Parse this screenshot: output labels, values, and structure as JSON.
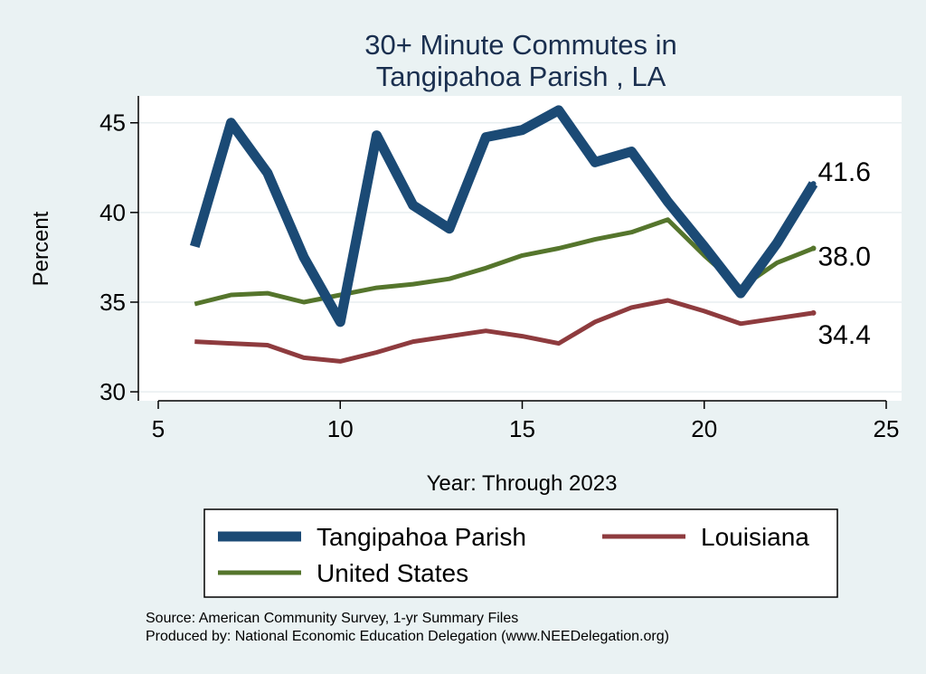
{
  "chart_data": {
    "type": "line",
    "title": [
      "30+ Minute Commutes in",
      "Tangipahoa Parish , LA"
    ],
    "xlabel": "Year: Through 2023",
    "ylabel": "Percent",
    "xlim": [
      5,
      25
    ],
    "ylim": [
      29.5,
      46.5
    ],
    "xticks": [
      5,
      10,
      15,
      20,
      25
    ],
    "yticks": [
      30,
      35,
      40,
      45
    ],
    "grid": true,
    "legend_position": "bottom",
    "series": [
      {
        "name": "Tangipahoa Parish",
        "color": "#1b4a75",
        "width": "thick",
        "x": [
          6,
          7,
          8,
          9,
          10,
          11,
          12,
          13,
          14,
          15,
          16,
          17,
          18,
          19,
          20,
          21,
          22,
          23
        ],
        "y": [
          38.1,
          45.0,
          42.2,
          37.5,
          33.9,
          44.3,
          40.4,
          39.1,
          44.2,
          44.6,
          45.7,
          42.8,
          43.4,
          40.6,
          38.1,
          35.5,
          38.3,
          41.6
        ],
        "end_label": "41.6"
      },
      {
        "name": "Louisiana",
        "color": "#8e3b3e",
        "width": "medium",
        "x": [
          6,
          7,
          8,
          9,
          10,
          11,
          12,
          13,
          14,
          15,
          16,
          17,
          18,
          19,
          20,
          21,
          22,
          23
        ],
        "y": [
          32.8,
          32.7,
          32.6,
          31.9,
          31.7,
          32.2,
          32.8,
          33.1,
          33.4,
          33.1,
          32.7,
          33.9,
          34.7,
          35.1,
          34.5,
          33.8,
          34.1,
          34.4
        ],
        "end_label": "34.4"
      },
      {
        "name": "United States",
        "color": "#55752c",
        "width": "medium",
        "x": [
          6,
          7,
          8,
          9,
          10,
          11,
          12,
          13,
          14,
          15,
          16,
          17,
          18,
          19,
          20,
          21,
          22,
          23
        ],
        "y": [
          34.9,
          35.4,
          35.5,
          35.0,
          35.4,
          35.8,
          36.0,
          36.3,
          36.9,
          37.6,
          38.0,
          38.5,
          38.9,
          39.6,
          37.6,
          35.8,
          37.2,
          38.0
        ],
        "end_label": "38.0"
      }
    ]
  },
  "footer": {
    "source": "Source: American Community Survey, 1-yr Summary Files",
    "produced_by": "Produced by: National Economic Education Delegation (www.NEEDelegation.org)"
  }
}
